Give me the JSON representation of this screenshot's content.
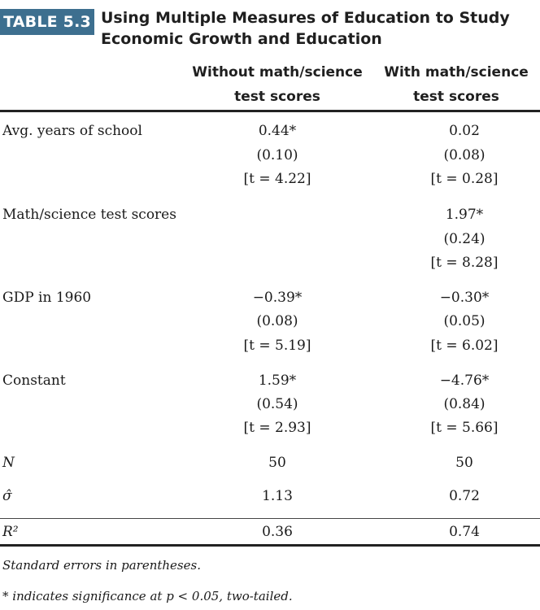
{
  "table_label": "TABLE 5.3",
  "title_line1": "Using Multiple Measures of Education to Study",
  "title_line2": "Economic Growth and Education",
  "columns": {
    "without_line1": "Without math/science",
    "without_line2": "test scores",
    "with_line1": "With math/science",
    "with_line2": "test scores"
  },
  "rows": {
    "avg_years": {
      "label": "Avg. years of school",
      "without": {
        "coef": "0.44*",
        "se": "(0.10)",
        "t": "[t = 4.22]"
      },
      "with": {
        "coef": "0.02",
        "se": "(0.08)",
        "t": "[t = 0.28]"
      }
    },
    "math_science": {
      "label": "Math/science test scores",
      "with": {
        "coef": "1.97*",
        "se": "(0.24)",
        "t": "[t = 8.28]"
      }
    },
    "gdp_1960": {
      "label": "GDP in 1960",
      "without": {
        "coef": "−0.39*",
        "se": "(0.08)",
        "t": "[t = 5.19]"
      },
      "with": {
        "coef": "−0.30*",
        "se": "(0.05)",
        "t": "[t = 6.02]"
      }
    },
    "constant": {
      "label": "Constant",
      "without": {
        "coef": "1.59*",
        "se": "(0.54)",
        "t": "[t = 2.93]"
      },
      "with": {
        "coef": "−4.76*",
        "se": "(0.84)",
        "t": "[t = 5.66]"
      }
    },
    "n": {
      "label": "N",
      "without": "50",
      "with": "50"
    },
    "sigma": {
      "label": "σ̂",
      "without": "1.13",
      "with": "0.72"
    },
    "r2": {
      "label": "R²",
      "without": "0.36",
      "with": "0.74"
    }
  },
  "notes": {
    "line1": "Standard errors in parentheses.",
    "line2": "* indicates significance at p < 0.05, two-tailed."
  },
  "colors": {
    "label_bg": "#3d6f8f",
    "label_text": "#ffffff"
  }
}
